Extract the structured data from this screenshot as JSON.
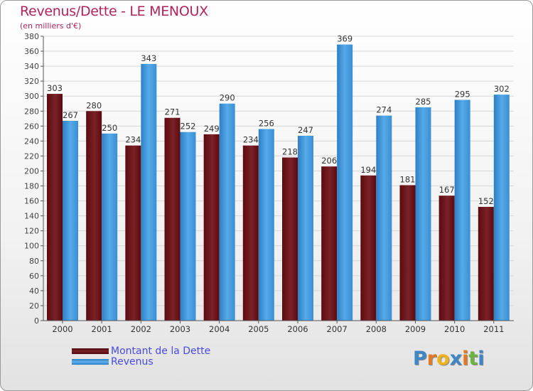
{
  "header": {
    "title": "Revenus/Dette - LE MENOUX",
    "subtitle": "(en milliers d'€)"
  },
  "legend": {
    "items": [
      {
        "label": "Montant de la Dette",
        "color": "#6b0d12"
      },
      {
        "label": "Revenus",
        "color": "#3d95d9"
      }
    ]
  },
  "logo": {
    "letters": [
      "P",
      "r",
      "o",
      "x",
      "i",
      "t",
      "i"
    ],
    "colors": [
      "#3f86c7",
      "#e8781f",
      "#f0b21a",
      "#3f86c7",
      "#e8781f",
      "#6db33f",
      "#3f86c7"
    ]
  },
  "chart_data": {
    "type": "bar",
    "categories": [
      "2000",
      "2001",
      "2002",
      "2003",
      "2004",
      "2005",
      "2006",
      "2007",
      "2008",
      "2009",
      "2010",
      "2011"
    ],
    "series": [
      {
        "name": "Montant de la Dette",
        "color": "#6b0d12",
        "values": [
          303,
          280,
          234,
          271,
          249,
          234,
          218,
          206,
          194,
          181,
          167,
          152
        ]
      },
      {
        "name": "Revenus",
        "color": "#3d95d9",
        "values": [
          267,
          250,
          343,
          252,
          290,
          256,
          247,
          369,
          274,
          285,
          295,
          302
        ]
      }
    ],
    "ylim": [
      0,
      380
    ],
    "ytick_step": 20,
    "grid": true
  }
}
